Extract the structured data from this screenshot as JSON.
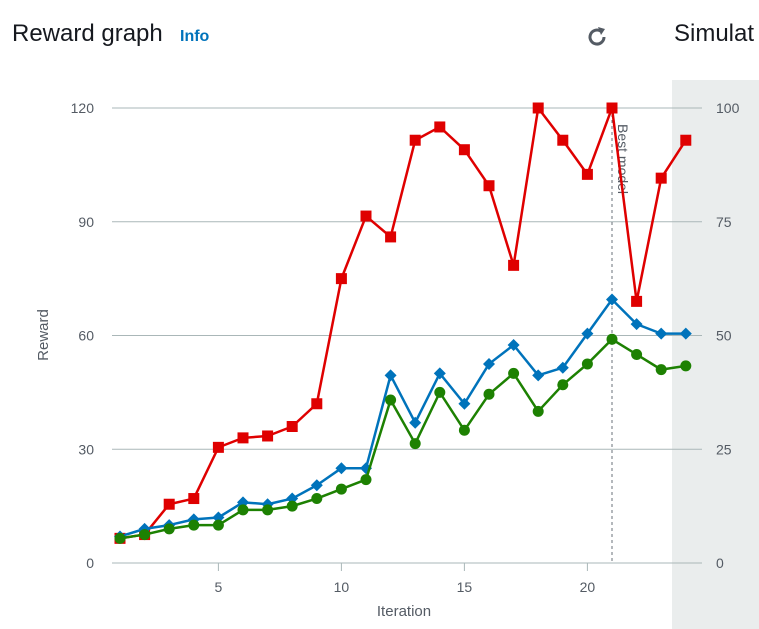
{
  "header": {
    "title": "Reward graph",
    "info": "Info",
    "side_title": "Simulat"
  },
  "icons": {
    "refresh": "refresh-icon"
  },
  "chart_data": {
    "type": "line",
    "xlabel": "Iteration",
    "ylabel": "Reward",
    "xlim": [
      1,
      24
    ],
    "ylim": [
      0,
      120
    ],
    "y2lim": [
      0,
      100
    ],
    "x_ticks": [
      5,
      10,
      15,
      20
    ],
    "y_ticks": [
      0,
      30,
      60,
      90,
      120
    ],
    "y2_ticks": [
      0,
      25,
      50,
      75,
      100
    ],
    "grid": true,
    "x": [
      1,
      2,
      3,
      4,
      5,
      6,
      7,
      8,
      9,
      10,
      11,
      12,
      13,
      14,
      15,
      16,
      17,
      18,
      19,
      20,
      21,
      22,
      23,
      24
    ],
    "series": [
      {
        "name": "red",
        "color": "#df0000",
        "marker": "square",
        "axis": "left",
        "values": [
          6.5,
          7.5,
          15.5,
          17,
          30.5,
          33,
          33.5,
          36,
          42,
          75,
          91.5,
          86,
          111.5,
          115,
          109,
          99.5,
          78.5,
          120,
          111.5,
          102.5,
          120,
          69,
          101.5,
          111.5
        ]
      },
      {
        "name": "blue",
        "color": "#0073bb",
        "marker": "diamond",
        "axis": "left",
        "values": [
          7,
          9,
          10,
          11.5,
          12,
          16,
          15.5,
          17,
          20.5,
          25,
          25,
          49.5,
          37,
          50,
          42,
          52.5,
          57.5,
          49.5,
          51.5,
          60.5,
          69.5,
          63,
          60.5,
          60.5
        ]
      },
      {
        "name": "green",
        "color": "#1d8102",
        "marker": "circle",
        "axis": "left",
        "values": [
          6.5,
          7.5,
          9,
          10,
          10,
          14,
          14,
          15,
          17,
          19.5,
          22,
          43,
          31.5,
          45,
          35,
          44.5,
          50,
          40,
          47,
          52.5,
          59,
          55,
          51,
          52
        ]
      }
    ],
    "annotation": {
      "label": "Best model",
      "x": 21
    }
  }
}
